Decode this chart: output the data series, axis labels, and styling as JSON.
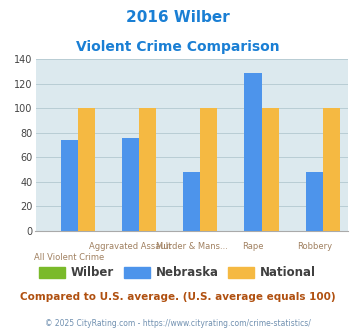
{
  "title_line1": "2016 Wilber",
  "title_line2": "Violent Crime Comparison",
  "categories": [
    "All Violent Crime",
    "Aggravated Assault",
    "Murder & Mans...",
    "Rape",
    "Robbery"
  ],
  "wilber": [
    0,
    0,
    0,
    0,
    0
  ],
  "nebraska": [
    74,
    76,
    48,
    129,
    48
  ],
  "national": [
    100,
    100,
    100,
    100,
    100
  ],
  "wilber_color": "#7aba2a",
  "nebraska_color": "#4d94eb",
  "national_color": "#f5b942",
  "bg_color": "#dce9ee",
  "ylim": [
    0,
    140
  ],
  "yticks": [
    0,
    20,
    40,
    60,
    80,
    100,
    120,
    140
  ],
  "title_color": "#1a7fd4",
  "xlabel_color": "#a08060",
  "footer_text": "Compared to U.S. average. (U.S. average equals 100)",
  "footer_color": "#b05010",
  "copyright_text": "© 2025 CityRating.com - https://www.cityrating.com/crime-statistics/",
  "copyright_color": "#7090b0",
  "grid_color": "#b8cdd4",
  "bar_width": 0.28,
  "legend_label_color": "#404040"
}
